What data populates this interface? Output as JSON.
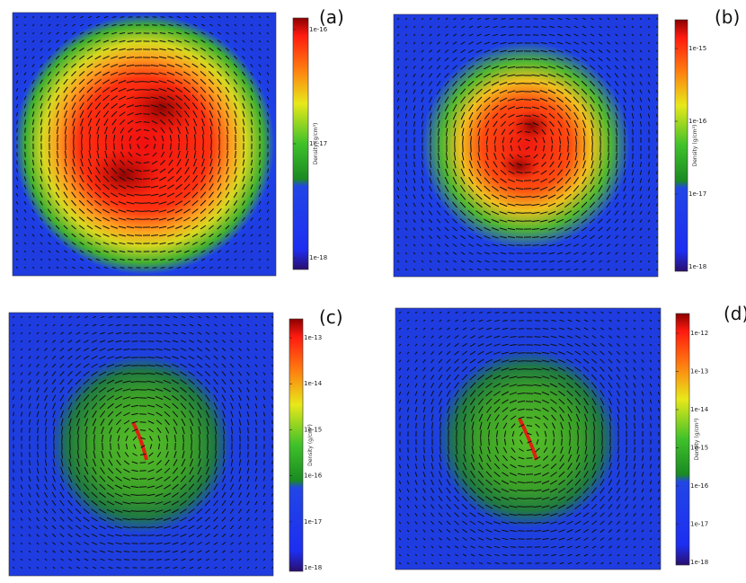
{
  "panels": [
    {
      "label": "(a)",
      "colorbar": {
        "label": "Density (g/cm³)",
        "ticks": [
          "1e-16",
          "1e-17",
          "1e-18"
        ]
      }
    },
    {
      "label": "(b)",
      "colorbar": {
        "label": "Density (g/cm³)",
        "ticks": [
          "1e-15",
          "1e-16",
          "1e-17",
          "1e-18"
        ]
      }
    },
    {
      "label": "(c)",
      "colorbar": {
        "label": "Density (g/cm³)",
        "ticks": [
          "1e-13",
          "1e-14",
          "1e-15",
          "1e-16",
          "1e-17",
          "1e-18"
        ]
      }
    },
    {
      "label": "(d)",
      "colorbar": {
        "label": "Density (g/cm³)",
        "ticks": [
          "1e-12",
          "1e-13",
          "1e-14",
          "1e-15",
          "1e-16",
          "1e-17",
          "1e-18"
        ]
      }
    }
  ]
}
